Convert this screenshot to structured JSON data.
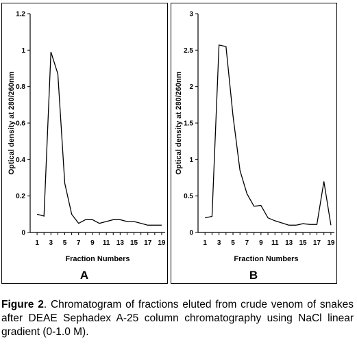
{
  "figure": {
    "caption_label": "Figure 2",
    "caption_text": ". Chromatogram of fractions eluted from crude venom of snakes after DEAE Sephadex A-25 column chromatography using NaCl linear gradient (0-1.0 M)."
  },
  "chart_data": [
    {
      "type": "line",
      "panel_label": "A",
      "xlabel": "Fraction Numbers",
      "ylabel": "Optical density at 280/260nm",
      "xlim": [
        0,
        19.5
      ],
      "ylim": [
        0,
        1.2
      ],
      "x_ticks": [
        1,
        3,
        5,
        7,
        9,
        11,
        13,
        15,
        17,
        19
      ],
      "y_ticks": [
        0,
        0.2,
        0.4,
        0.6,
        0.8,
        1,
        1.2
      ],
      "y_tick_labels": [
        "0",
        "0.2",
        "0.4",
        "0.6",
        "0.8",
        "1",
        "1.2"
      ],
      "grid": false,
      "series": [
        {
          "x": [
            1,
            2,
            3,
            4,
            5,
            6,
            7,
            8,
            9,
            10,
            11,
            12,
            13,
            14,
            15,
            16,
            17,
            18,
            19
          ],
          "values": [
            0.1,
            0.09,
            0.99,
            0.87,
            0.27,
            0.1,
            0.05,
            0.07,
            0.07,
            0.05,
            0.06,
            0.07,
            0.07,
            0.06,
            0.06,
            0.05,
            0.04,
            0.04,
            0.04
          ]
        }
      ]
    },
    {
      "type": "line",
      "panel_label": "B",
      "xlabel": "Fraction Numbers",
      "ylabel": "Optical density at 280/260nm",
      "xlim": [
        0,
        19.5
      ],
      "ylim": [
        0,
        3
      ],
      "x_ticks": [
        1,
        3,
        5,
        7,
        9,
        11,
        13,
        15,
        17,
        19
      ],
      "y_ticks": [
        0,
        0.5,
        1,
        1.5,
        2,
        2.5,
        3
      ],
      "y_tick_labels": [
        "0",
        "0.5",
        "1",
        "1.5",
        "2",
        "2.5",
        "3"
      ],
      "grid": false,
      "series": [
        {
          "x": [
            1,
            2,
            3,
            4,
            5,
            6,
            7,
            8,
            9,
            10,
            11,
            12,
            13,
            14,
            15,
            16,
            17,
            18,
            19
          ],
          "values": [
            0.2,
            0.22,
            2.57,
            2.55,
            1.6,
            0.85,
            0.53,
            0.36,
            0.37,
            0.2,
            0.16,
            0.13,
            0.1,
            0.1,
            0.12,
            0.11,
            0.11,
            0.7,
            0.1
          ]
        }
      ]
    }
  ]
}
